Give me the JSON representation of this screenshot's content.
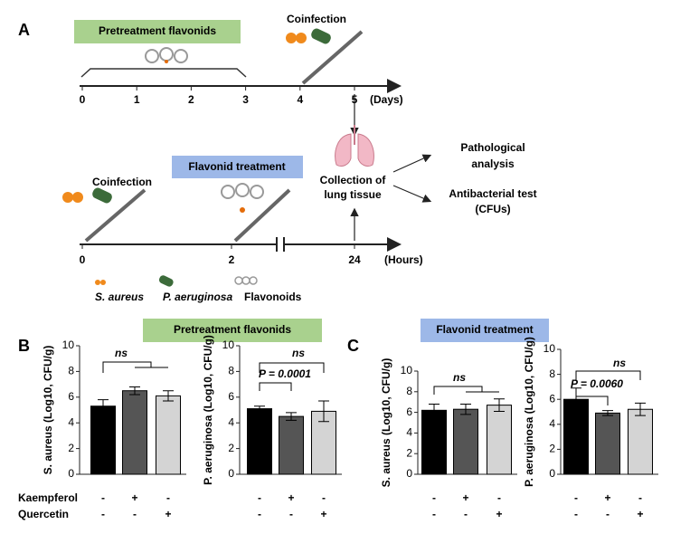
{
  "diagram": {
    "label": "A",
    "pretreatment": "Pretreatment flavonids",
    "coinfection_top": "Coinfection",
    "days_ticks": [
      "0",
      "1",
      "2",
      "3",
      "4",
      "5"
    ],
    "days_unit": "(Days)",
    "collection": [
      "Collection of",
      "lung tissue"
    ],
    "pathological": [
      "Pathological",
      "analysis"
    ],
    "antibacterial": [
      "Antibacterial test",
      "(CFUs)"
    ],
    "coinfection_bottom": "Coinfection",
    "treatment": "Flavonid treatment",
    "hours_ticks": [
      "0",
      "2",
      "24"
    ],
    "hours_unit": "(Hours)",
    "legend": [
      "S. aureus",
      "P. aeruginosa",
      "Flavonoids"
    ]
  },
  "panels": {
    "B": {
      "label": "B",
      "title": "Pretreatment flavonids"
    },
    "C": {
      "label": "C",
      "title": "Flavonid treatment"
    }
  },
  "chart_data": [
    {
      "type": "bar",
      "y_label": "S. aureus (Log10, CFU/g)",
      "ylim": [
        0,
        10
      ],
      "yticks": [
        0,
        2,
        4,
        6,
        8,
        10
      ],
      "values": [
        5.3,
        6.5,
        6.1
      ],
      "errors": [
        0.5,
        0.3,
        0.4
      ],
      "colors": [
        "#000000",
        "#555555",
        "#d4d4d4"
      ],
      "row_labels": [
        "Kaempferol",
        "Quercetin"
      ],
      "rows": [
        [
          "-",
          "+",
          "-"
        ],
        [
          "-",
          "-",
          "+"
        ]
      ],
      "annotations": [
        "ns"
      ]
    },
    {
      "type": "bar",
      "y_label": "P. aeruginosa (Log10, CFU/g)",
      "ylim": [
        0,
        10
      ],
      "yticks": [
        0,
        2,
        4,
        6,
        8,
        10
      ],
      "values": [
        5.1,
        4.5,
        4.9
      ],
      "errors": [
        0.2,
        0.3,
        0.8
      ],
      "colors": [
        "#000000",
        "#555555",
        "#d4d4d4"
      ],
      "rows": [
        [
          "-",
          "+",
          "-"
        ],
        [
          "-",
          "-",
          "+"
        ]
      ],
      "annotations": [
        "P = 0.0001",
        "ns"
      ]
    },
    {
      "type": "bar",
      "y_label": "S. aureus (Log10, CFU/g)",
      "ylim": [
        0,
        10
      ],
      "yticks": [
        0,
        2,
        4,
        6,
        8,
        10
      ],
      "values": [
        6.2,
        6.3,
        6.7
      ],
      "errors": [
        0.6,
        0.5,
        0.6
      ],
      "colors": [
        "#000000",
        "#555555",
        "#d4d4d4"
      ],
      "rows": [
        [
          "-",
          "+",
          "-"
        ],
        [
          "-",
          "-",
          "+"
        ]
      ],
      "annotations": [
        "ns"
      ]
    },
    {
      "type": "bar",
      "y_label": "P. aeruginosa (Log10, CFU/g)",
      "ylim": [
        0,
        10
      ],
      "yticks": [
        0,
        2,
        4,
        6,
        8,
        10
      ],
      "values": [
        6.0,
        4.9,
        5.2
      ],
      "errors": [
        0.9,
        0.2,
        0.5
      ],
      "colors": [
        "#000000",
        "#555555",
        "#d4d4d4"
      ],
      "rows": [
        [
          "-",
          "+",
          "-"
        ],
        [
          "-",
          "-",
          "+"
        ]
      ],
      "annotations": [
        "P = 0.0060",
        "ns"
      ]
    }
  ]
}
